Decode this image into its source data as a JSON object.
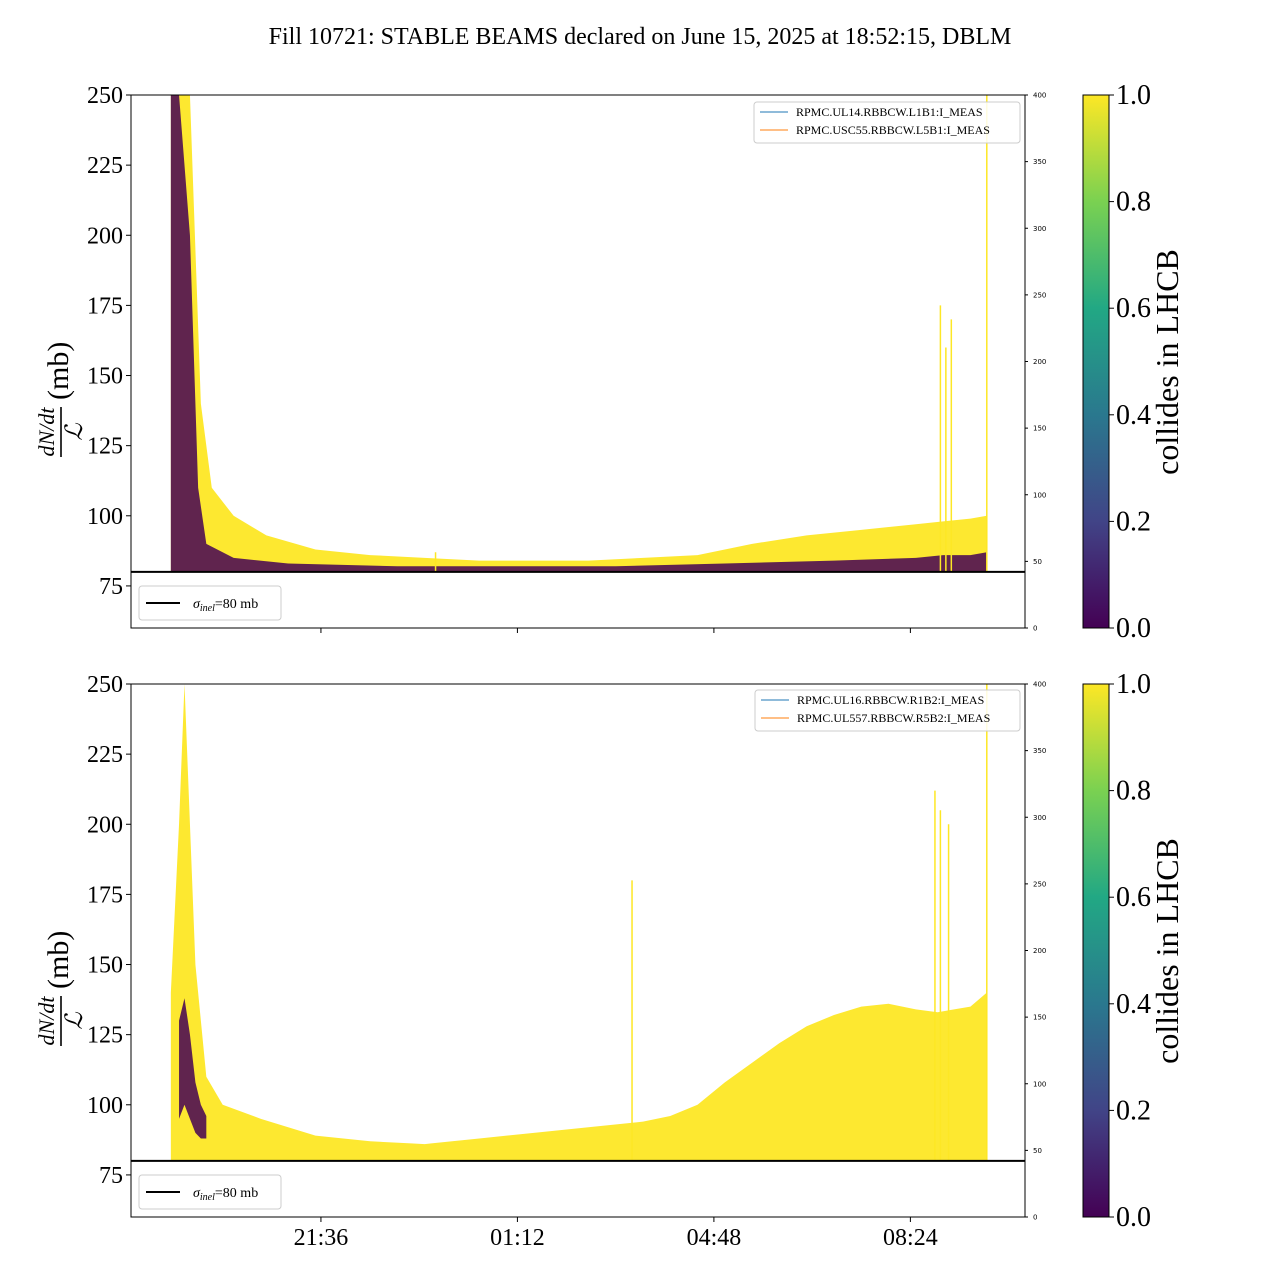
{
  "title": "Fill 10721: STABLE BEAMS declared on June 15, 2025 at 18:52:15, DBLM",
  "chart_data": [
    {
      "type": "line",
      "panel": "top",
      "ylabel_numerator": "dN/dt",
      "ylabel_denominator": "ℒ",
      "ylabel_unit": "(mb)",
      "ylim": [
        60,
        250
      ],
      "yticks": [
        "75",
        "100",
        "125",
        "150",
        "175",
        "200",
        "225",
        "250"
      ],
      "y2lim": [
        0,
        400
      ],
      "y2ticks": [
        "0",
        "50",
        "100",
        "150",
        "200",
        "250",
        "300",
        "350",
        "400"
      ],
      "xticks": [
        "21:36",
        "01:12",
        "04:48",
        "08:24"
      ],
      "xtick_hours": [
        21.6,
        25.2,
        28.8,
        32.4
      ],
      "xlim_hours": [
        18.12,
        34.5
      ],
      "legend_right": [
        "RPMC.UL14.RBBCW.L1B1:I_MEAS",
        "RPMC.USC55.RBBCW.L5B1:I_MEAS"
      ],
      "legend_right_colors": [
        "#1f77b4",
        "#ff7f0e"
      ],
      "legend_left": {
        "sigma": "σ",
        "sub": "inel",
        "rest": "=80 mb"
      },
      "reference_line": 80,
      "band_yellow": {
        "x": [
          18.85,
          19.0,
          19.2,
          19.4,
          19.6,
          20.0,
          20.6,
          21.5,
          22.5,
          23.5,
          24.5,
          25.5,
          26.5,
          27.5,
          28.5,
          29.5,
          30.5,
          31.5,
          32.5,
          33.0,
          33.5,
          33.8
        ],
        "upper": [
          250,
          250,
          250,
          140,
          110,
          100,
          93,
          88,
          86,
          85,
          84,
          84,
          84,
          85,
          86,
          90,
          93,
          95,
          97,
          98,
          99,
          100
        ],
        "lower": [
          80,
          80,
          80,
          80,
          80,
          80,
          80,
          80,
          80,
          80,
          80,
          80,
          80,
          80,
          80,
          80,
          80,
          80,
          80,
          80,
          80,
          80
        ]
      },
      "band_purple": {
        "x": [
          18.85,
          19.0,
          19.2,
          19.35,
          19.5,
          20.0,
          21.0,
          23.0,
          25.0,
          27.0,
          29.0,
          31.0,
          32.5,
          33.0,
          33.5,
          33.8
        ],
        "upper": [
          250,
          250,
          200,
          110,
          90,
          85,
          83,
          82,
          82,
          82,
          83,
          84,
          85,
          86,
          86,
          87
        ],
        "lower": [
          80,
          80,
          80,
          80,
          80,
          80,
          80,
          80,
          80,
          80,
          80,
          80,
          80,
          80,
          80,
          80
        ]
      },
      "spikes": [
        {
          "x": 32.95,
          "y": 175
        },
        {
          "x": 33.05,
          "y": 160
        },
        {
          "x": 33.15,
          "y": 170
        },
        {
          "x": 23.7,
          "y": 87
        },
        {
          "x": 33.8,
          "y": 250
        }
      ]
    },
    {
      "type": "line",
      "panel": "bottom",
      "ylabel_numerator": "dN/dt",
      "ylabel_denominator": "ℒ",
      "ylabel_unit": "(mb)",
      "ylim": [
        60,
        250
      ],
      "yticks": [
        "75",
        "100",
        "125",
        "150",
        "175",
        "200",
        "225",
        "250"
      ],
      "y2lim": [
        0,
        400
      ],
      "y2ticks": [
        "0",
        "50",
        "100",
        "150",
        "200",
        "250",
        "300",
        "350",
        "400"
      ],
      "xticks": [
        "21:36",
        "01:12",
        "04:48",
        "08:24"
      ],
      "xtick_hours": [
        21.6,
        25.2,
        28.8,
        32.4
      ],
      "xlim_hours": [
        18.12,
        34.5
      ],
      "legend_right": [
        "RPMC.UL16.RBBCW.R1B2:I_MEAS",
        "RPMC.UL557.RBBCW.R5B2:I_MEAS"
      ],
      "legend_right_colors": [
        "#1f77b4",
        "#ff7f0e"
      ],
      "legend_left": {
        "sigma": "σ",
        "sub": "inel",
        "rest": "=80 mb"
      },
      "reference_line": 80,
      "band_yellow": {
        "x": [
          18.85,
          19.0,
          19.1,
          19.3,
          19.5,
          19.8,
          20.5,
          21.5,
          22.5,
          23.5,
          24.5,
          25.5,
          26.5,
          27.5,
          28.0,
          28.5,
          29.0,
          29.5,
          30.0,
          30.5,
          31.0,
          31.5,
          32.0,
          32.5,
          32.9,
          33.2,
          33.5,
          33.8
        ],
        "upper": [
          140,
          200,
          250,
          150,
          110,
          100,
          95,
          89,
          87,
          86,
          88,
          90,
          92,
          94,
          96,
          100,
          108,
          115,
          122,
          128,
          132,
          135,
          136,
          134,
          133,
          134,
          135,
          140
        ],
        "lower": [
          80,
          80,
          80,
          80,
          80,
          80,
          80,
          80,
          80,
          80,
          80,
          80,
          80,
          80,
          80,
          80,
          80,
          80,
          80,
          80,
          80,
          80,
          80,
          80,
          80,
          80,
          80,
          80
        ]
      },
      "band_purple": {
        "x": [
          19.0,
          19.1,
          19.2,
          19.3,
          19.4,
          19.5
        ],
        "upper": [
          130,
          138,
          125,
          108,
          100,
          96
        ],
        "lower": [
          95,
          100,
          95,
          90,
          88,
          88
        ]
      },
      "spikes": [
        {
          "x": 32.85,
          "y": 212
        },
        {
          "x": 32.95,
          "y": 205
        },
        {
          "x": 33.1,
          "y": 200
        },
        {
          "x": 27.3,
          "y": 180
        },
        {
          "x": 33.8,
          "y": 250
        }
      ]
    }
  ],
  "colorbar": {
    "label": "collides in LHCB",
    "ticks": [
      "0.0",
      "0.2",
      "0.4",
      "0.6",
      "0.8",
      "1.0"
    ],
    "colors": [
      "#440154",
      "#414487",
      "#2a788e",
      "#22a884",
      "#7ad151",
      "#fde725"
    ],
    "band_yellow_color": "#fde725",
    "band_purple_color": "#440154"
  }
}
